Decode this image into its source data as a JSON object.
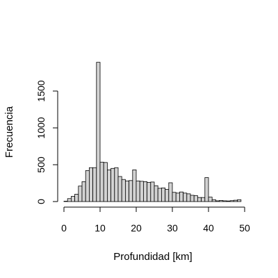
{
  "chart_data": {
    "type": "bar",
    "subtype": "histogram",
    "xlabel": "Profundidad [km]",
    "ylabel": "Frecuencia",
    "xlim": [
      0,
      50
    ],
    "ylim": [
      0,
      1900
    ],
    "xticks": [
      0,
      10,
      20,
      30,
      40,
      50
    ],
    "yticks": [
      0,
      500,
      1000,
      1500
    ],
    "bin_width": 1,
    "bin_starts": [
      0,
      1,
      2,
      3,
      4,
      5,
      6,
      7,
      8,
      9,
      10,
      11,
      12,
      13,
      14,
      15,
      16,
      17,
      18,
      19,
      20,
      21,
      22,
      23,
      24,
      25,
      26,
      27,
      28,
      29,
      30,
      31,
      32,
      33,
      34,
      35,
      36,
      37,
      38,
      39,
      40,
      41,
      42,
      43,
      44,
      45,
      46,
      47,
      48
    ],
    "values": [
      5,
      40,
      70,
      100,
      210,
      270,
      420,
      460,
      460,
      1890,
      535,
      530,
      430,
      450,
      460,
      340,
      300,
      280,
      285,
      430,
      280,
      275,
      270,
      260,
      265,
      215,
      180,
      185,
      165,
      255,
      125,
      115,
      130,
      115,
      105,
      85,
      80,
      55,
      55,
      325,
      60,
      25,
      10,
      15,
      10,
      8,
      12,
      18,
      25
    ],
    "bar_fill": "#d3d3d3",
    "bar_stroke": "#000000",
    "grid": false,
    "legend": "none"
  }
}
